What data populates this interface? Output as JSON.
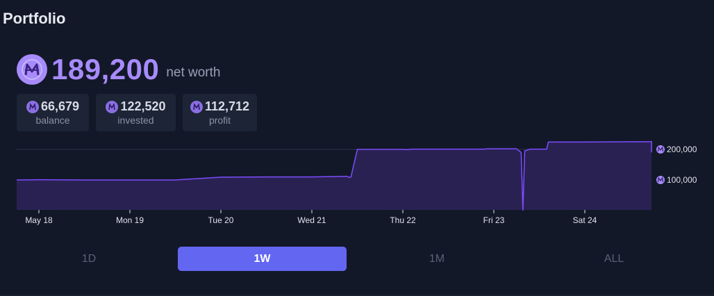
{
  "header": {
    "title": "Portfolio"
  },
  "networth": {
    "value": "189,200",
    "label": "net worth",
    "currency_icon": "mana-coin-icon"
  },
  "stats": [
    {
      "value": "66,679",
      "label": "balance"
    },
    {
      "value": "122,520",
      "label": "invested"
    },
    {
      "value": "112,712",
      "label": "profit"
    }
  ],
  "colors": {
    "accent": "#a78bfa",
    "line": "#7c4dff",
    "fill": "#2a2153",
    "active_button": "#6366f1",
    "background": "#121828"
  },
  "chart_data": {
    "type": "area",
    "x_tick_labels": [
      "May 18",
      "Mon 19",
      "Tue 20",
      "Wed 21",
      "Thu 22",
      "Fri 23",
      "Sat 24"
    ],
    "x": [
      17.2,
      17.5,
      18.0,
      18.5,
      19.0,
      19.5,
      20.0,
      20.5,
      20.88,
      20.92,
      20.93,
      21.0,
      21.5,
      21.55,
      21.6,
      22.0,
      22.4,
      22.42,
      22.75,
      22.8,
      22.82,
      22.84,
      22.9,
      23.0,
      23.08,
      23.1,
      23.5,
      24.0,
      24.5,
      24.7,
      24.75,
      24.78
    ],
    "y": [
      100000,
      101000,
      100000,
      100000,
      100000,
      109000,
      110000,
      110000,
      112000,
      108000,
      110000,
      200000,
      200000,
      199000,
      201000,
      201000,
      201000,
      202000,
      202000,
      190000,
      0,
      195000,
      201000,
      201000,
      201000,
      224000,
      224000,
      225000,
      225000,
      226000,
      228000,
      190000
    ],
    "y_tick_labels": [
      "200,000",
      "100,000"
    ],
    "y_ticks": [
      200000,
      100000
    ],
    "ylim": [
      -100000,
      260000
    ],
    "grid": true
  },
  "time_ranges": [
    {
      "label": "1D",
      "active": false
    },
    {
      "label": "1W",
      "active": true
    },
    {
      "label": "1M",
      "active": false
    },
    {
      "label": "ALL",
      "active": false
    }
  ]
}
